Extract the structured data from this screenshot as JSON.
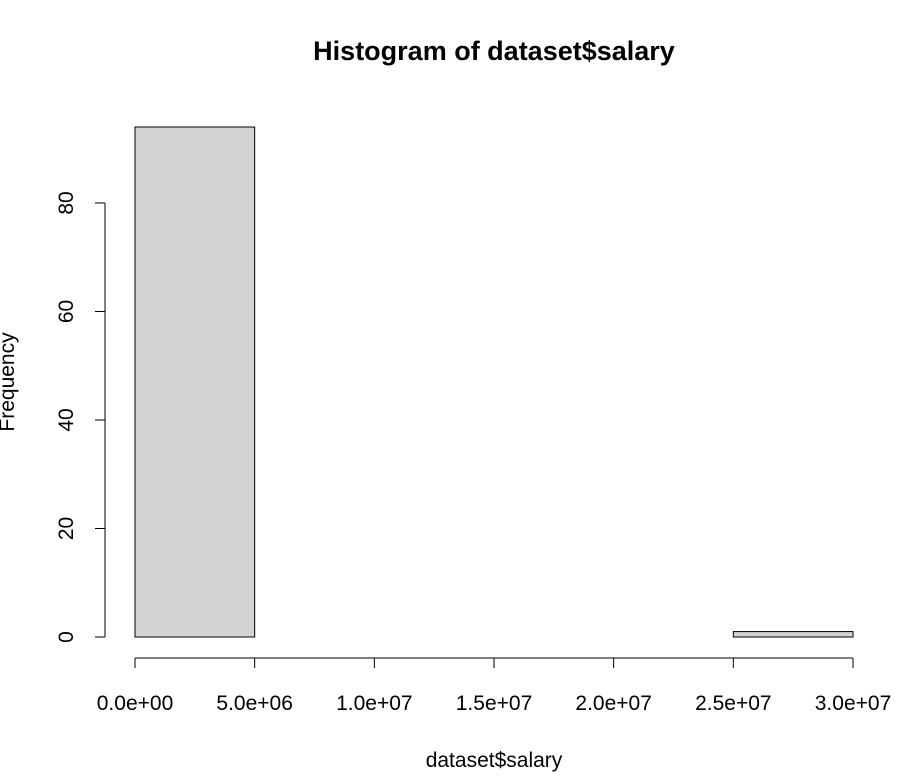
{
  "chart_data": {
    "type": "bar",
    "title": "Histogram of dataset$salary",
    "xlabel": "dataset$salary",
    "ylabel": "Frequency",
    "bins": [
      {
        "x0": 0,
        "x1": 5000000,
        "count": 94
      },
      {
        "x0": 5000000,
        "x1": 10000000,
        "count": 0
      },
      {
        "x0": 10000000,
        "x1": 15000000,
        "count": 0
      },
      {
        "x0": 15000000,
        "x1": 20000000,
        "count": 0
      },
      {
        "x0": 20000000,
        "x1": 25000000,
        "count": 0
      },
      {
        "x0": 25000000,
        "x1": 30000000,
        "count": 1
      }
    ],
    "xlim": [
      0,
      30000000
    ],
    "ylim": [
      0,
      94
    ],
    "x_ticks": [
      0,
      5000000,
      10000000,
      15000000,
      20000000,
      25000000,
      30000000
    ],
    "x_tick_labels": [
      "0.0e+00",
      "5.0e+06",
      "1.0e+07",
      "1.5e+07",
      "2.0e+07",
      "2.5e+07",
      "3.0e+07"
    ],
    "y_ticks": [
      0,
      20,
      40,
      60,
      80
    ],
    "y_tick_labels": [
      "0",
      "20",
      "40",
      "60",
      "80"
    ],
    "bar_color": "#d3d3d3",
    "grid": false,
    "legend": "none"
  }
}
